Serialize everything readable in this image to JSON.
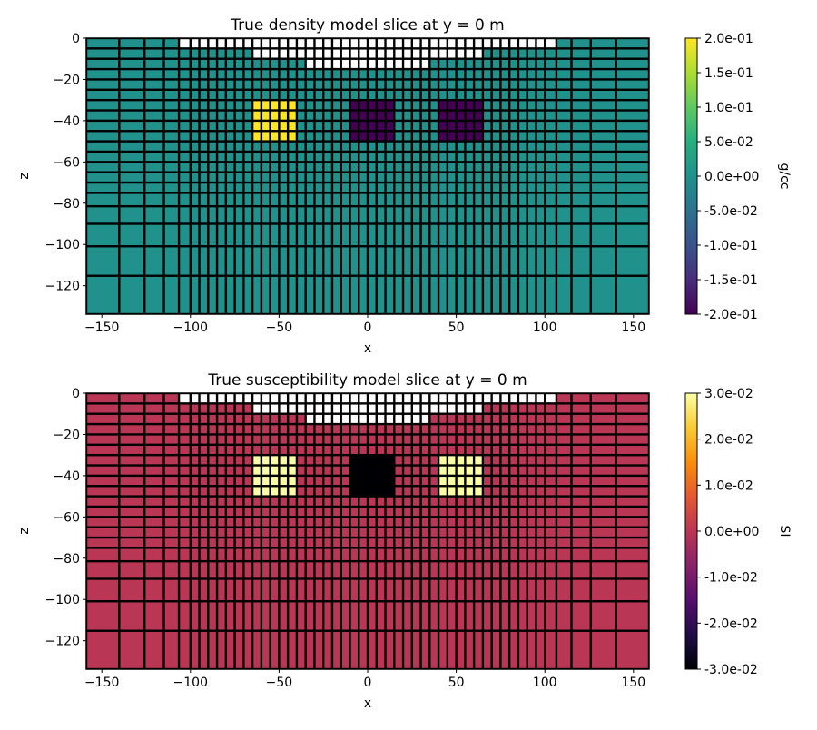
{
  "chart_data": [
    {
      "type": "heatmap",
      "title": "True density model slice at y = 0 m",
      "xlabel": "x",
      "ylabel": "z",
      "xlim": [
        -158.8,
        158.8
      ],
      "ylim": [
        -133.8,
        0
      ],
      "xticks": [
        -150,
        -100,
        -50,
        0,
        50,
        100,
        150
      ],
      "yticks": [
        0,
        -20,
        -40,
        -60,
        -80,
        -100,
        -120
      ],
      "x_edges": [
        -158.8,
        -140.2,
        -125.9,
        -115.0,
        -106.5,
        -100,
        -95,
        -90,
        -85,
        -80,
        -75,
        -70,
        -65,
        -60,
        -55,
        -50,
        -45,
        -40,
        -35,
        -30,
        -25,
        -20,
        -15,
        -10,
        -5,
        0,
        5,
        10,
        15,
        20,
        25,
        30,
        35,
        40,
        45,
        50,
        55,
        60,
        65,
        70,
        75,
        80,
        85,
        90,
        95,
        100,
        106.5,
        115.0,
        125.9,
        140.2,
        158.8
      ],
      "z_edges": [
        0,
        -5,
        -10,
        -15,
        -20,
        -25,
        -30,
        -35,
        -40,
        -45,
        -50,
        -55,
        -60,
        -65,
        -70,
        -75,
        -81.5,
        -90.0,
        -100.9,
        -115.2,
        -133.8
      ],
      "background_value": 0,
      "blocks": [
        {
          "x": [
            -65,
            -40
          ],
          "z": [
            -50,
            -30
          ],
          "value": 0.2
        },
        {
          "x": [
            -10,
            15
          ],
          "z": [
            -50,
            -30
          ],
          "value": -0.2
        },
        {
          "x": [
            40,
            65
          ],
          "z": [
            -50,
            -30
          ],
          "value": -0.2
        }
      ],
      "air": [
        {
          "z": [
            -5,
            0
          ],
          "x": [
            -106.5,
            106.5
          ]
        },
        {
          "z": [
            -10,
            -5
          ],
          "x": [
            -65,
            65
          ]
        },
        {
          "z": [
            -15,
            -10
          ],
          "x": [
            -35,
            35
          ]
        }
      ],
      "colormap": "viridis",
      "clim": [
        -0.2,
        0.2
      ],
      "colorbar": {
        "label": "g/cc",
        "ticks": [
          0.2,
          0.15,
          0.1,
          0.05,
          0,
          -0.05,
          -0.1,
          -0.15,
          -0.2
        ],
        "tick_labels": [
          "2.0e-01",
          "1.5e-01",
          "1.0e-01",
          "5.0e-02",
          "0.0e+00",
          "-5.0e-02",
          "-1.0e-01",
          "-1.5e-01",
          "-2.0e-01"
        ]
      },
      "grid": false,
      "edge_color": "#000000"
    },
    {
      "type": "heatmap",
      "title": "True susceptibility model slice at y = 0 m",
      "xlabel": "x",
      "ylabel": "z",
      "xlim": [
        -158.8,
        158.8
      ],
      "ylim": [
        -133.8,
        0
      ],
      "xticks": [
        -150,
        -100,
        -50,
        0,
        50,
        100,
        150
      ],
      "yticks": [
        0,
        -20,
        -40,
        -60,
        -80,
        -100,
        -120
      ],
      "x_edges": [
        -158.8,
        -140.2,
        -125.9,
        -115.0,
        -106.5,
        -100,
        -95,
        -90,
        -85,
        -80,
        -75,
        -70,
        -65,
        -60,
        -55,
        -50,
        -45,
        -40,
        -35,
        -30,
        -25,
        -20,
        -15,
        -10,
        -5,
        0,
        5,
        10,
        15,
        20,
        25,
        30,
        35,
        40,
        45,
        50,
        55,
        60,
        65,
        70,
        75,
        80,
        85,
        90,
        95,
        100,
        106.5,
        115.0,
        125.9,
        140.2,
        158.8
      ],
      "z_edges": [
        0,
        -5,
        -10,
        -15,
        -20,
        -25,
        -30,
        -35,
        -40,
        -45,
        -50,
        -55,
        -60,
        -65,
        -70,
        -75,
        -81.5,
        -90.0,
        -100.9,
        -115.2,
        -133.8
      ],
      "background_value": 0,
      "blocks": [
        {
          "x": [
            -65,
            -40
          ],
          "z": [
            -50,
            -30
          ],
          "value": 0.03
        },
        {
          "x": [
            -10,
            15
          ],
          "z": [
            -50,
            -30
          ],
          "value": -0.03
        },
        {
          "x": [
            40,
            65
          ],
          "z": [
            -50,
            -30
          ],
          "value": 0.03
        }
      ],
      "air": [
        {
          "z": [
            -5,
            0
          ],
          "x": [
            -106.5,
            106.5
          ]
        },
        {
          "z": [
            -10,
            -5
          ],
          "x": [
            -65,
            65
          ]
        },
        {
          "z": [
            -15,
            -10
          ],
          "x": [
            -35,
            35
          ]
        }
      ],
      "colormap": "inferno",
      "clim": [
        -0.03,
        0.03
      ],
      "colorbar": {
        "label": "SI",
        "ticks": [
          0.03,
          0.02,
          0.01,
          0,
          -0.01,
          -0.02,
          -0.03
        ],
        "tick_labels": [
          "3.0e-02",
          "2.0e-02",
          "1.0e-02",
          "0.0e+00",
          "-1.0e-02",
          "-2.0e-02",
          "-3.0e-02"
        ]
      },
      "grid": false,
      "edge_color": "#000000"
    }
  ],
  "colormaps": {
    "viridis": [
      "#440154",
      "#472d7b",
      "#3b528b",
      "#2c728e",
      "#21918c",
      "#28ae80",
      "#5ec962",
      "#addc30",
      "#fde725"
    ],
    "inferno": [
      "#000004",
      "#1f0c48",
      "#550f6d",
      "#88226a",
      "#ba3655",
      "#e35933",
      "#f98e09",
      "#f9cb35",
      "#fcffa4"
    ]
  }
}
